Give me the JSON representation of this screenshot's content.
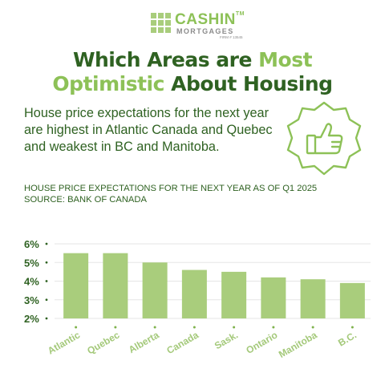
{
  "logo": {
    "name": "CASHIN",
    "tm": "TM",
    "sub": "MORTGAGES",
    "firm": "FIRM # 13545"
  },
  "headline": {
    "part1": "Which Areas are ",
    "part2": "Most",
    "part3": "Optimistic",
    "part4": " About Housing"
  },
  "subtitle": "House price expectations for the next year are highest in Atlantic Canada and Quebec and weakest in BC and Manitoba.",
  "badge_icon": "thumbs-up-icon",
  "chart_title_line1": "HOUSE PRICE EXPECTATIONS FOR THE NEXT YEAR AS OF Q1 2025",
  "chart_title_line2": "SOURCE: BANK OF CANADA",
  "colors": {
    "bar": "#a9cd7c",
    "dark_green": "#2f6222",
    "light_green": "#8dc157",
    "tick_text": "#a4c97a"
  },
  "chart_data": {
    "type": "bar",
    "categories": [
      "Atlantic",
      "Quebec",
      "Alberta",
      "Canada",
      "Sask.",
      "Ontario",
      "Manitoba",
      "B.C."
    ],
    "values": [
      5.5,
      5.5,
      5.0,
      4.6,
      4.5,
      4.2,
      4.1,
      3.9
    ],
    "ylim": [
      2,
      6
    ],
    "yticks": [
      "6%",
      "5%",
      "4%",
      "3%",
      "2%"
    ],
    "ytick_values": [
      6,
      5,
      4,
      3,
      2
    ],
    "grid": true,
    "unit": "%"
  }
}
